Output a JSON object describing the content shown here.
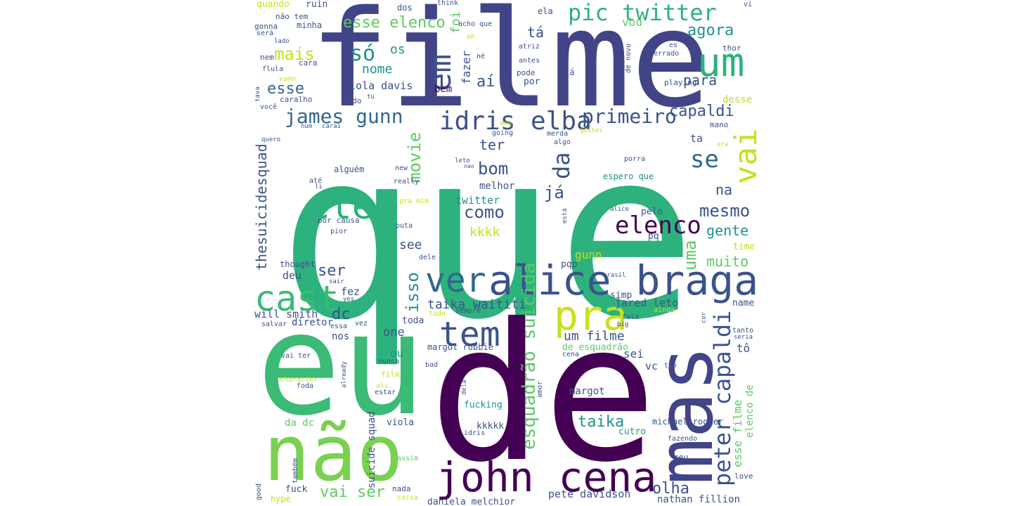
{
  "word_cloud": {
    "palette": [
      "#440154",
      "#3b528b",
      "#21918c",
      "#2db27d",
      "#5ec962",
      "#a0da39",
      "#fde725"
    ],
    "words": [
      {
        "text": "que",
        "color": "#2db27d"
      },
      {
        "text": "filme",
        "color": "#414487"
      },
      {
        "text": "de",
        "color": "#440154"
      },
      {
        "text": "eu",
        "color": "#3bbb75"
      },
      {
        "text": "mas",
        "color": "#414487"
      },
      {
        "text": "não",
        "color": "#7ad151"
      },
      {
        "text": "alice braga",
        "color": "#3b528b"
      },
      {
        "text": "john cena",
        "color": "#440154"
      },
      {
        "text": "pic twitter",
        "color": "#2db27d"
      },
      {
        "text": "um",
        "color": "#2db27d"
      },
      {
        "text": "em",
        "color": "#3b528b"
      },
      {
        "text": "ele",
        "color": "#2db27d"
      },
      {
        "text": "cast",
        "color": "#3bbb75"
      },
      {
        "text": "ver",
        "color": "#31688e"
      },
      {
        "text": "pra",
        "color": "#c8e020"
      },
      {
        "text": "tem",
        "color": "#3b528b"
      },
      {
        "text": "vai",
        "color": "#c8e020"
      },
      {
        "text": "idris elba",
        "color": "#3b528b"
      },
      {
        "text": "peter capaldi",
        "color": "#3b528b"
      },
      {
        "text": "elenco",
        "color": "#440154"
      },
      {
        "text": "james gunn",
        "color": "#31688e"
      },
      {
        "text": "primeiro",
        "color": "#3b528b"
      },
      {
        "text": "esquadrão suicida",
        "color": "#5ec962"
      },
      {
        "text": "se",
        "color": "#31688e"
      },
      {
        "text": "da",
        "color": "#3b528b"
      },
      {
        "text": "só",
        "color": "#21918c"
      },
      {
        "text": "mais",
        "color": "#c8e020"
      },
      {
        "text": "esse elenco",
        "color": "#5ec962"
      },
      {
        "text": "esse",
        "color": "#31688e"
      },
      {
        "text": "nome",
        "color": "#21918c"
      },
      {
        "text": "os",
        "color": "#21918c"
      },
      {
        "text": "em",
        "color": "#2db27d"
      },
      {
        "text": "agora",
        "color": "#21918c"
      },
      {
        "text": "vou",
        "color": "#5ec962"
      },
      {
        "text": "tá",
        "color": "#3b528b"
      },
      {
        "text": "foi",
        "color": "#5ec962"
      },
      {
        "text": "fazer",
        "color": "#3b528b"
      },
      {
        "text": "aí",
        "color": "#3b528b"
      },
      {
        "text": "viola davis",
        "color": "#3b528b"
      },
      {
        "text": "bem",
        "color": "#440154"
      },
      {
        "text": "para",
        "color": "#3b528b"
      },
      {
        "text": "capaldi",
        "color": "#3b528b"
      },
      {
        "text": "bom",
        "color": "#3b528b"
      },
      {
        "text": "movie",
        "color": "#5ec962"
      },
      {
        "text": "ter",
        "color": "#3b528b"
      },
      {
        "text": "já",
        "color": "#3b528b"
      },
      {
        "text": "na",
        "color": "#3b528b"
      },
      {
        "text": "mesmo",
        "color": "#3b528b"
      },
      {
        "text": "uma",
        "color": "#5ec962"
      },
      {
        "text": "gente",
        "color": "#21918c"
      },
      {
        "text": "muito",
        "color": "#5ec962"
      },
      {
        "text": "como",
        "color": "#3b528b"
      },
      {
        "text": "kkkk",
        "color": "#c8e020"
      },
      {
        "text": "twitter",
        "color": "#21918c"
      },
      {
        "text": "melhor",
        "color": "#3b528b"
      },
      {
        "text": "see",
        "color": "#3b528b"
      },
      {
        "text": "isso",
        "color": "#21918c"
      },
      {
        "text": "taika waititi",
        "color": "#3b528b"
      },
      {
        "text": "ser",
        "color": "#3b528b"
      },
      {
        "text": "thesuicidesquad",
        "color": "#3b528b"
      },
      {
        "text": "dc",
        "color": "#3b528b"
      },
      {
        "text": "will smith",
        "color": "#3b528b"
      },
      {
        "text": "um filme",
        "color": "#3b528b"
      },
      {
        "text": "de esquadrão",
        "color": "#5ec962"
      },
      {
        "text": "taika",
        "color": "#21918c"
      },
      {
        "text": "vai ser",
        "color": "#5ec962"
      },
      {
        "text": "olha",
        "color": "#3b528b"
      },
      {
        "text": "pete davidson",
        "color": "#3b528b"
      },
      {
        "text": "daniela melchior",
        "color": "#3b528b"
      },
      {
        "text": "gunn",
        "color": "#c8e020"
      },
      {
        "text": "jared leto",
        "color": "#3b528b"
      },
      {
        "text": "esse filme",
        "color": "#5ec962"
      },
      {
        "text": "elenco de",
        "color": "#5ec962"
      },
      {
        "text": "sei",
        "color": "#3b528b"
      },
      {
        "text": "vc",
        "color": "#3b528b"
      },
      {
        "text": "nathan fillion",
        "color": "#3b528b"
      },
      {
        "text": "tô",
        "color": "#3b528b"
      },
      {
        "text": "desse",
        "color": "#c8e020"
      },
      {
        "text": "time",
        "color": "#c8e020"
      },
      {
        "text": "name",
        "color": "#3b528b"
      },
      {
        "text": "one",
        "color": "#3b528b"
      },
      {
        "text": "nos",
        "color": "#3b528b"
      },
      {
        "text": "ou",
        "color": "#21918c"
      },
      {
        "text": "fez",
        "color": "#3b528b"
      },
      {
        "text": "deu",
        "color": "#3b528b"
      },
      {
        "text": "diretor",
        "color": "#3b528b"
      },
      {
        "text": "toda",
        "color": "#3b528b"
      },
      {
        "text": "margot robbie",
        "color": "#3b528b"
      },
      {
        "text": "margot",
        "color": "#3b528b"
      },
      {
        "text": "michael rooker",
        "color": "#3b528b"
      },
      {
        "text": "suicide squad",
        "color": "#3b528b"
      },
      {
        "text": "viola",
        "color": "#3b528b"
      },
      {
        "text": "da dc",
        "color": "#5ec962"
      },
      {
        "text": "kkkkk",
        "color": "#3b528b"
      },
      {
        "text": "fucking",
        "color": "#21918c"
      },
      {
        "text": "espero que",
        "color": "#21918c"
      },
      {
        "text": "pelo",
        "color": "#3b528b"
      },
      {
        "text": "cutro",
        "color": "#21918c"
      },
      {
        "text": "pq",
        "color": "#3b528b"
      },
      {
        "text": "pqp",
        "color": "#3b528b"
      },
      {
        "text": "simp",
        "color": "#3b528b"
      },
      {
        "text": "ta",
        "color": "#3b528b"
      },
      {
        "text": "mano",
        "color": "#3b528b"
      },
      {
        "text": "playing",
        "color": "#3b528b"
      },
      {
        "text": "thor",
        "color": "#3b528b"
      },
      {
        "text": "quando",
        "color": "#c8e020"
      },
      {
        "text": "ruin",
        "color": "#3b528b"
      },
      {
        "text": "não tem",
        "color": "#3b528b"
      },
      {
        "text": "minha",
        "color": "#3b528b"
      },
      {
        "text": "gonna",
        "color": "#3b528b"
      },
      {
        "text": "será",
        "color": "#3b528b"
      },
      {
        "text": "dos",
        "color": "#3b528b"
      },
      {
        "text": "think",
        "color": "#3b528b"
      },
      {
        "text": "ela",
        "color": "#3b528b"
      },
      {
        "text": "acho que",
        "color": "#3b528b"
      },
      {
        "text": "atriz",
        "color": "#3b528b"
      },
      {
        "text": "antes",
        "color": "#3b528b"
      },
      {
        "text": "pode",
        "color": "#3b528b"
      },
      {
        "text": "lá",
        "color": "#3b528b"
      },
      {
        "text": "por",
        "color": "#3b528b"
      },
      {
        "text": "né",
        "color": "#3b528b"
      },
      {
        "text": "nem",
        "color": "#3b528b"
      },
      {
        "text": "cara",
        "color": "#3b528b"
      },
      {
        "text": "flula",
        "color": "#3b528b"
      },
      {
        "text": "vamo",
        "color": "#c8e020"
      },
      {
        "text": "tava",
        "color": "#3b528b"
      },
      {
        "text": "caralho",
        "color": "#3b528b"
      },
      {
        "text": "você",
        "color": "#3b528b"
      },
      {
        "text": "tudo",
        "color": "#3b528b"
      },
      {
        "text": "tu",
        "color": "#3b528b"
      },
      {
        "text": "num",
        "color": "#3b528b"
      },
      {
        "text": "carai",
        "color": "#3b528b"
      },
      {
        "text": "quero",
        "color": "#3b528b"
      },
      {
        "text": "alguém",
        "color": "#3b528b"
      },
      {
        "text": "new",
        "color": "#3b528b"
      },
      {
        "text": "really",
        "color": "#3b528b"
      },
      {
        "text": "até",
        "color": "#3b528b"
      },
      {
        "text": "pra mim",
        "color": "#c8e020"
      },
      {
        "text": "por causa",
        "color": "#3b528b"
      },
      {
        "text": "pior",
        "color": "#3b528b"
      },
      {
        "text": "puta",
        "color": "#3b528b"
      },
      {
        "text": "thought",
        "color": "#3b528b"
      },
      {
        "text": "dele",
        "color": "#3b528b"
      },
      {
        "text": "sair",
        "color": "#3b528b"
      },
      {
        "text": "yes",
        "color": "#3b528b"
      },
      {
        "text": "salvar",
        "color": "#3b528b"
      },
      {
        "text": "essa",
        "color": "#3b528b"
      },
      {
        "text": "vez",
        "color": "#3b528b"
      },
      {
        "text": "sempre",
        "color": "#3b528b"
      },
      {
        "text": "tudo",
        "color": "#c8e020"
      },
      {
        "text": "ainda",
        "color": "#c8e020"
      },
      {
        "text": "fala",
        "color": "#3b528b"
      },
      {
        "text": "big",
        "color": "#3b528b"
      },
      {
        "text": "cor",
        "color": "#3b528b"
      },
      {
        "text": "tanto",
        "color": "#3b528b"
      },
      {
        "text": "seria",
        "color": "#3b528b"
      },
      {
        "text": "vai ter",
        "color": "#3b528b"
      },
      {
        "text": "character",
        "color": "#c8e020"
      },
      {
        "text": "foda",
        "color": "#3b528b"
      },
      {
        "text": "already",
        "color": "#3b528b"
      },
      {
        "text": "ali",
        "color": "#c8e020"
      },
      {
        "text": "estar",
        "color": "#3b528b"
      },
      {
        "text": "film",
        "color": "#c8e020"
      },
      {
        "text": "nunca",
        "color": "#3b528b"
      },
      {
        "text": "bad",
        "color": "#3b528b"
      },
      {
        "text": "cena",
        "color": "#3b528b"
      },
      {
        "text": "tão",
        "color": "#3b528b"
      },
      {
        "text": "amor",
        "color": "#3b528b"
      },
      {
        "text": "dela",
        "color": "#3b528b"
      },
      {
        "text": "idris",
        "color": "#3b528b"
      },
      {
        "text": "fazendo",
        "color": "#3b528b"
      },
      {
        "text": "meu",
        "color": "#3b528b"
      },
      {
        "text": "love",
        "color": "#3b528b"
      },
      {
        "text": "assim",
        "color": "#5ec962"
      },
      {
        "text": "também",
        "color": "#3b528b"
      },
      {
        "text": "good",
        "color": "#3b528b"
      },
      {
        "text": "fuck",
        "color": "#3b528b"
      },
      {
        "text": "nada",
        "color": "#3b528b"
      },
      {
        "text": "hype",
        "color": "#c8e020"
      },
      {
        "text": "coisa",
        "color": "#c8e020"
      },
      {
        "text": "vi",
        "color": "#3b528b"
      },
      {
        "text": "es",
        "color": "#3b528b"
      },
      {
        "text": "errado",
        "color": "#3b528b"
      },
      {
        "text": "de novo",
        "color": "#3b528b"
      },
      {
        "text": "ah",
        "color": "#c8e020"
      },
      {
        "text": "mah",
        "color": "#c8e020"
      },
      {
        "text": "going",
        "color": "#3b528b"
      },
      {
        "text": "gostei",
        "color": "#c8e020"
      },
      {
        "text": "merda",
        "color": "#3b528b"
      },
      {
        "text": "algo",
        "color": "#3b528b"
      },
      {
        "text": "porra",
        "color": "#3b528b"
      },
      {
        "text": "era",
        "color": "#c8e020"
      },
      {
        "text": "alice",
        "color": "#3b528b"
      },
      {
        "text": "está",
        "color": "#3b528b"
      },
      {
        "text": "leto",
        "color": "#3b528b"
      },
      {
        "text": "nao",
        "color": "#3b528b"
      },
      {
        "text": "lado",
        "color": "#3b528b"
      },
      {
        "text": "li",
        "color": "#3b528b"
      },
      {
        "text": "brasil",
        "color": "#3b528b"
      }
    ]
  }
}
